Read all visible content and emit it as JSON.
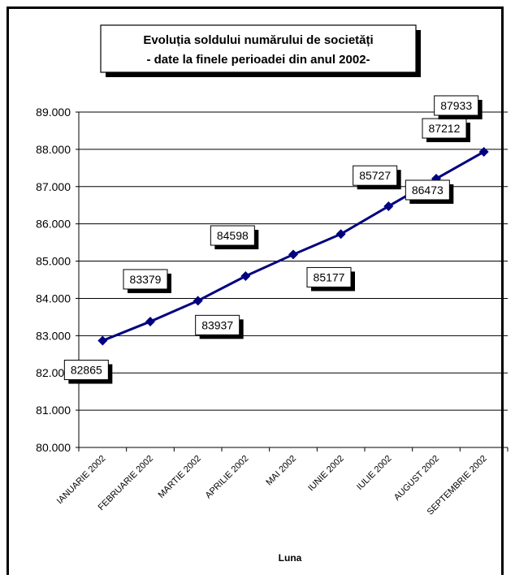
{
  "chart_data": {
    "type": "line",
    "title_lines": [
      "Evoluția soldului numărului de societăți",
      "- date la finele perioadei din anul 2002-"
    ],
    "xlabel": "Luna",
    "ylabel": "",
    "categories": [
      "IANUARIE 2002",
      "FEBRUARIE 2002",
      "MARTIE 2002",
      "APRILIE 2002",
      "MAI 2002",
      "IUNIE 2002",
      "IULIE 2002",
      "AUGUST 2002",
      "SEPTEMBRIE 2002"
    ],
    "series": [
      {
        "values": [
          82865,
          83379,
          83937,
          84598,
          85177,
          85727,
          86473,
          87212,
          87933
        ]
      }
    ],
    "data_labels": [
      "82865",
      "83379",
      "83937",
      "84598",
      "85177",
      "85727",
      "86473",
      "87212",
      "87933"
    ],
    "ylim": [
      80000,
      89000
    ],
    "yticks": [
      80000,
      81000,
      82000,
      83000,
      84000,
      85000,
      86000,
      87000,
      88000,
      89000
    ],
    "ytick_labels": [
      "80.000",
      "81.000",
      "82.000",
      "83.000",
      "84.000",
      "85.000",
      "86.000",
      "87.000",
      "88.000",
      "89.000"
    ],
    "grid": true,
    "legend": "none",
    "colors": {
      "line": "#000080",
      "grid": "#000000",
      "frame": "#000000"
    }
  }
}
